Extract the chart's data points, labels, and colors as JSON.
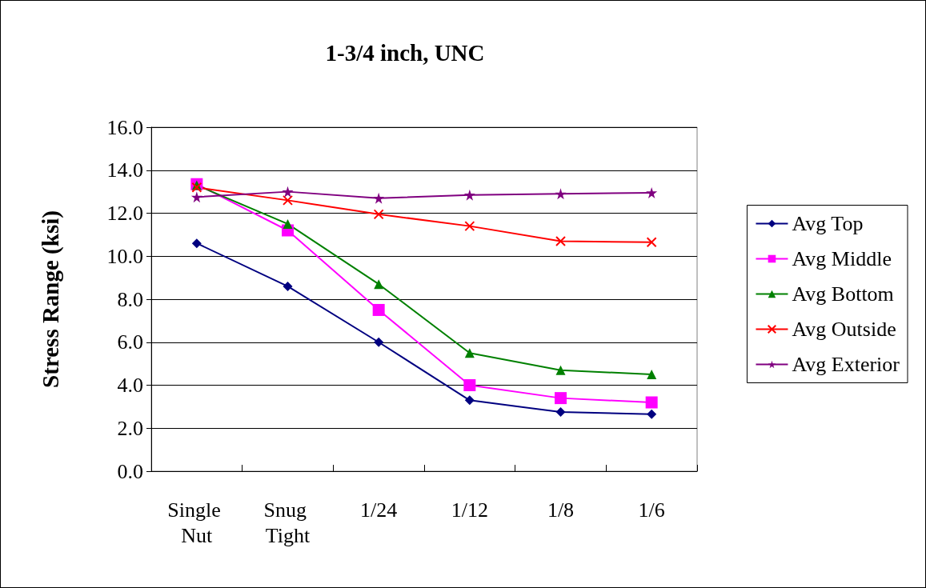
{
  "chart_data": {
    "type": "line",
    "title": "1-3/4 inch, UNC",
    "ylabel": "Stress Range (ksi)",
    "categories": [
      "Single Nut",
      "Snug Tight",
      "1/24",
      "1/12",
      "1/8",
      "1/6"
    ],
    "series": [
      {
        "name": "Avg Top",
        "color": "#000080",
        "marker": "diamond",
        "values": [
          10.6,
          8.6,
          6.0,
          3.3,
          2.75,
          2.65
        ]
      },
      {
        "name": "Avg Middle",
        "color": "#ff00ff",
        "marker": "square",
        "values": [
          13.35,
          11.2,
          7.5,
          4.0,
          3.4,
          3.2
        ]
      },
      {
        "name": "Avg Bottom",
        "color": "#008000",
        "marker": "triangle",
        "values": [
          13.3,
          11.5,
          8.7,
          5.5,
          4.7,
          4.5
        ]
      },
      {
        "name": "Avg Outside",
        "color": "#ff0000",
        "marker": "cross",
        "values": [
          13.2,
          12.6,
          11.95,
          11.4,
          10.7,
          10.65
        ]
      },
      {
        "name": "Avg Exterior",
        "color": "#800080",
        "marker": "star",
        "values": [
          12.75,
          13.0,
          12.7,
          12.85,
          12.9,
          12.95
        ]
      }
    ],
    "ylim": [
      0,
      16
    ],
    "yticks": [
      {
        "value": 0,
        "label": "0.0"
      },
      {
        "value": 2,
        "label": "2.0"
      },
      {
        "value": 4,
        "label": "4.0"
      },
      {
        "value": 6,
        "label": "6.0"
      },
      {
        "value": 8,
        "label": "8.0"
      },
      {
        "value": 10,
        "label": "10.0"
      },
      {
        "value": 12,
        "label": "12.0"
      },
      {
        "value": 14,
        "label": "14.0"
      },
      {
        "value": 16,
        "label": "16.0"
      }
    ],
    "grid": "y",
    "legend": "right",
    "line_style": "solid"
  }
}
